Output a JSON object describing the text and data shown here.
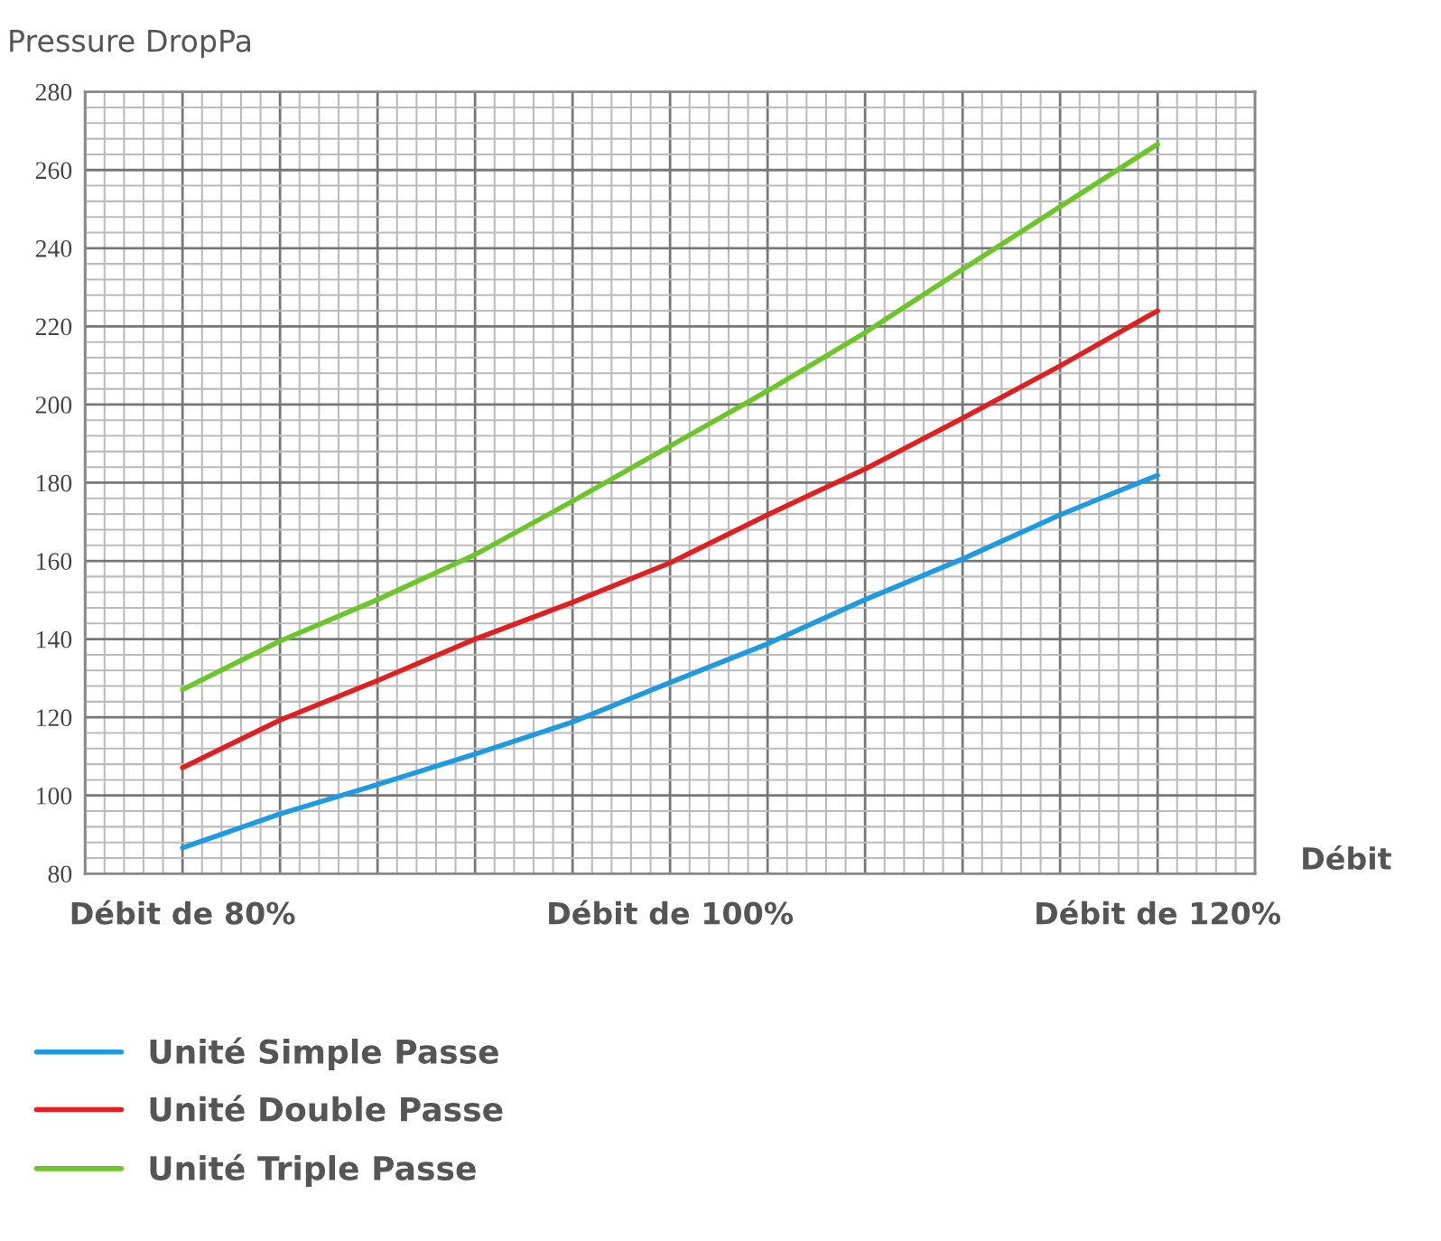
{
  "chart_data": {
    "type": "line",
    "ylabel": "Pressure DropPa",
    "xlabel": "Débit",
    "categories": [
      "Débit de 80%",
      null,
      null,
      null,
      null,
      "Débit de 100%",
      null,
      null,
      null,
      null,
      "Débit de 120%"
    ],
    "series": [
      {
        "name": "Unité Simple Passe",
        "color": "#1e9be0",
        "values": [
          86.6,
          95.3,
          102.8,
          110.6,
          118.8,
          128.9,
          138.8,
          150.1,
          160.5,
          171.8,
          181.9
        ]
      },
      {
        "name": "Unité Double Passe",
        "color": "#e02020",
        "values": [
          107.1,
          119.3,
          129.4,
          140,
          149.4,
          159.5,
          171.8,
          183.5,
          196.5,
          209.9,
          224
        ]
      },
      {
        "name": "Unité Triple Passe",
        "color": "#6cc62a",
        "values": [
          127.1,
          139.5,
          150.1,
          161.6,
          175.3,
          189.4,
          203.5,
          218.4,
          234.6,
          250.6,
          266.6
        ]
      }
    ],
    "ylim": [
      80,
      280
    ],
    "yticks": [
      80,
      100,
      120,
      140,
      160,
      180,
      200,
      220,
      240,
      260,
      280
    ],
    "grid": true,
    "legend": "bottom left",
    "marker": "none",
    "line_style": "solid"
  }
}
